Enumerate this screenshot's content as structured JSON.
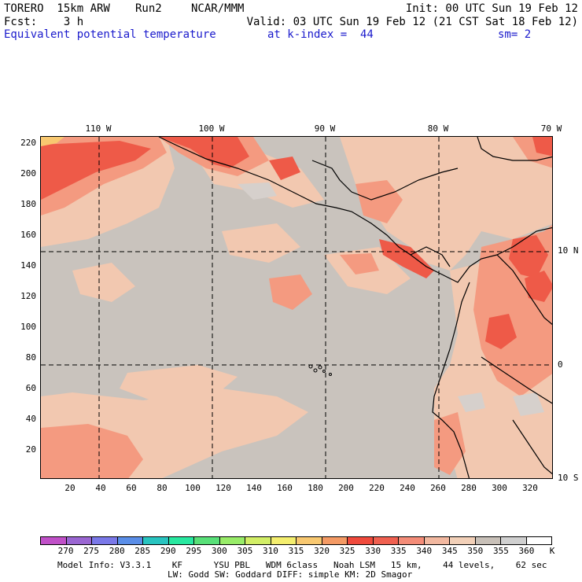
{
  "header": {
    "model": "TORERO  15km ARW",
    "run": "Run2",
    "org": "NCAR/MMM",
    "init": "Init: 00 UTC Sun 19 Feb 12",
    "fcst": "Fcst:    3 h",
    "valid": "Valid: 03 UTC Sun 19 Feb 12 (21 CST Sat 18 Feb 12)",
    "field": "Equivalent potential temperature",
    "level": "at k-index =  44",
    "smoothing": "sm= 2"
  },
  "map": {
    "lon_labels": [
      "110 W",
      "100 W",
      "90 W",
      "80 W",
      "70 W"
    ],
    "lat_labels": [
      "10 N",
      "0",
      "10 S"
    ],
    "y_ticks": [
      "220",
      "200",
      "180",
      "160",
      "140",
      "120",
      "100",
      "80",
      "60",
      "40",
      "20"
    ],
    "x_ticks": [
      "20",
      "40",
      "60",
      "80",
      "100",
      "120",
      "140",
      "160",
      "180",
      "200",
      "220",
      "240",
      "260",
      "280",
      "300",
      "320"
    ]
  },
  "colorbar": {
    "colors": [
      "#c050c8",
      "#9a66d2",
      "#7a78e8",
      "#5a8ee8",
      "#28c4c0",
      "#28e8a0",
      "#58e078",
      "#98ec68",
      "#d2ee66",
      "#f4ee6e",
      "#f8c870",
      "#f49a64",
      "#f04a3c",
      "#f06050",
      "#f48c78",
      "#f2b8a0",
      "#f2d0b8",
      "#c8c0b8",
      "#d0d0d0",
      "#ffffff"
    ],
    "labels": [
      "270",
      "275",
      "280",
      "285",
      "290",
      "295",
      "300",
      "305",
      "310",
      "315",
      "320",
      "325",
      "330",
      "335",
      "340",
      "345",
      "350",
      "355",
      "360",
      "K"
    ]
  },
  "footer": {
    "line1": "Model Info: V3.3.1    KF      YSU PBL   WDM 6class   Noah LSM   15 km,    44 levels,    62 sec",
    "line2": "LW: Godd SW: Goddard DIFF: simple KM: 2D Smagor"
  }
}
